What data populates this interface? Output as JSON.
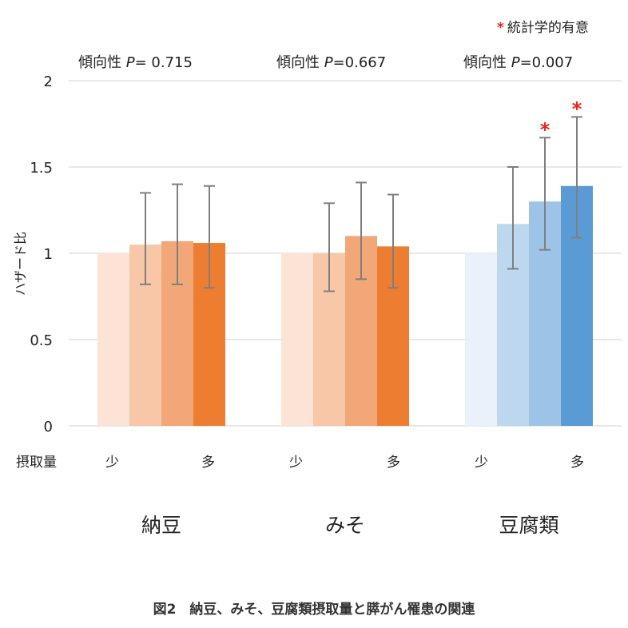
{
  "legend": {
    "star": "*",
    "text": "統計学的有意"
  },
  "y_axis_label": "ハザード比",
  "intake_label": "摂取量",
  "caption": "図2　納豆、みそ、豆腐類摂取量と膵がん罹患の関連",
  "groups": [
    {
      "name": "納豆",
      "p_prefix": "傾向性 ",
      "p_letter": "P",
      "p_value": "= 0.715",
      "low": "少",
      "high": "多"
    },
    {
      "name": "みそ",
      "p_prefix": "傾向性 ",
      "p_letter": "P",
      "p_value": "=0.667",
      "low": "少",
      "high": "多"
    },
    {
      "name": "豆腐類",
      "p_prefix": "傾向性 ",
      "p_letter": "P",
      "p_value": "=0.007",
      "low": "少",
      "high": "多"
    }
  ],
  "colors": {
    "natto": [
      "#fbe4d6",
      "#f7c7a8",
      "#f1a777",
      "#ed7d31"
    ],
    "miso": [
      "#fbe4d6",
      "#f7c7a8",
      "#f1a777",
      "#ed7d31"
    ],
    "tofu": [
      "#eaf1fa",
      "#bdd7ee",
      "#9dc3e6",
      "#5b9bd5"
    ],
    "error_bar": "#7f7f7f",
    "significance": "#e8241c",
    "grid": "#d9d9d9"
  },
  "chart_data": {
    "type": "bar",
    "categories": [
      "納豆",
      "みそ",
      "豆腐類"
    ],
    "ylabel": "ハザード比",
    "ylim": [
      0,
      2
    ],
    "yticks": [
      "0",
      "0.5",
      "1",
      "1.5",
      "2"
    ],
    "grid": true,
    "legend_position": "top-right",
    "series": [
      {
        "values": [
          1.0,
          1.0,
          1.0
        ],
        "ci_low": [
          null,
          null,
          null
        ],
        "ci_high": [
          null,
          null,
          null
        ],
        "significant": [
          false,
          false,
          false
        ]
      },
      {
        "values": [
          1.05,
          1.0,
          1.17
        ],
        "ci_low": [
          0.82,
          0.78,
          0.91
        ],
        "ci_high": [
          1.35,
          1.29,
          1.5
        ],
        "significant": [
          false,
          false,
          false
        ]
      },
      {
        "values": [
          1.07,
          1.1,
          1.3
        ],
        "ci_low": [
          0.82,
          0.85,
          1.02
        ],
        "ci_high": [
          1.4,
          1.41,
          1.67
        ],
        "significant": [
          false,
          false,
          true
        ]
      },
      {
        "values": [
          1.06,
          1.04,
          1.39
        ],
        "ci_low": [
          0.8,
          0.8,
          1.09
        ],
        "ci_high": [
          1.39,
          1.34,
          1.79
        ],
        "significant": [
          false,
          false,
          true
        ]
      }
    ]
  }
}
